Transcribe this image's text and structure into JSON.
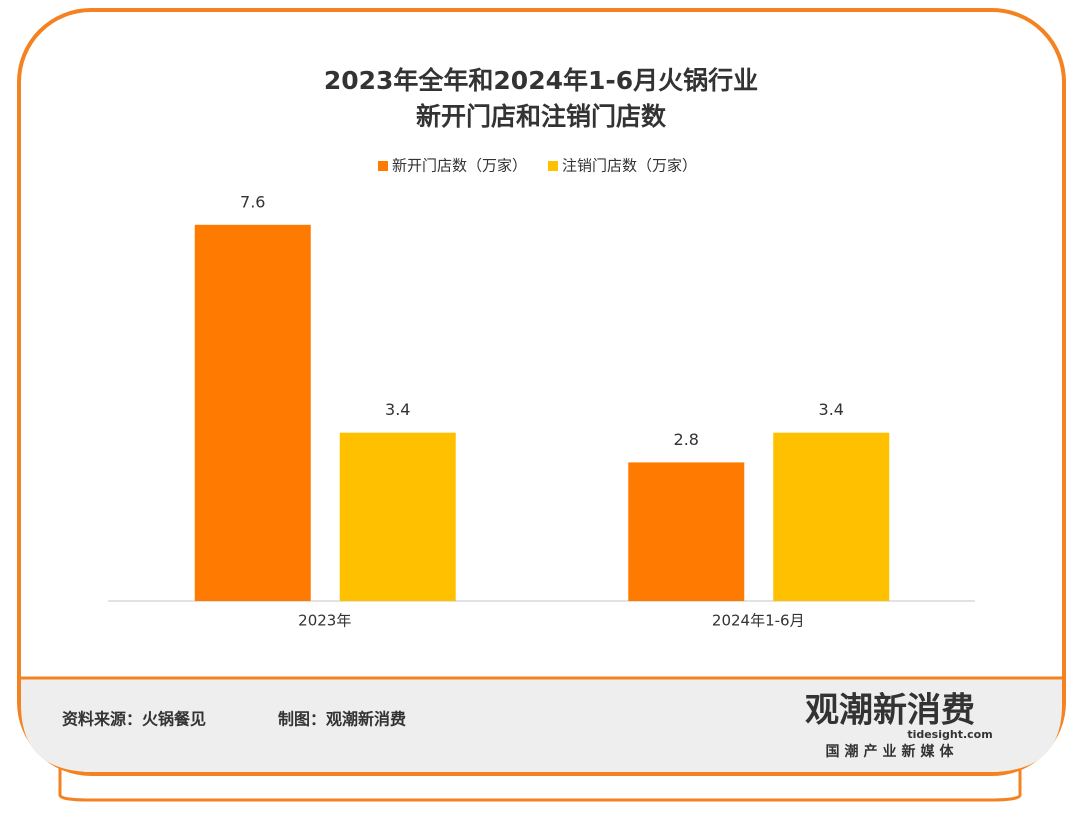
{
  "chart_data": {
    "type": "bar",
    "title": [
      "2023年全年和2024年1-6月火锅行业",
      "新开门店和注销门店数"
    ],
    "categories": [
      "2023年",
      "2024年1-6月"
    ],
    "series": [
      {
        "name": "新开门店数（万家）",
        "color": "#ff7a00",
        "values": [
          7.6,
          2.8
        ]
      },
      {
        "name": "注销门店数（万家）",
        "color": "#ffc000",
        "values": [
          3.4,
          3.4
        ]
      }
    ],
    "ylim": [
      0,
      8
    ]
  },
  "footer": {
    "source": "资料来源：火锅餐见",
    "maker": "制图：观潮新消费"
  },
  "logo": {
    "name": "观潮新消费",
    "site": "tidesight.com",
    "slogan": "国潮产业新媒体"
  }
}
